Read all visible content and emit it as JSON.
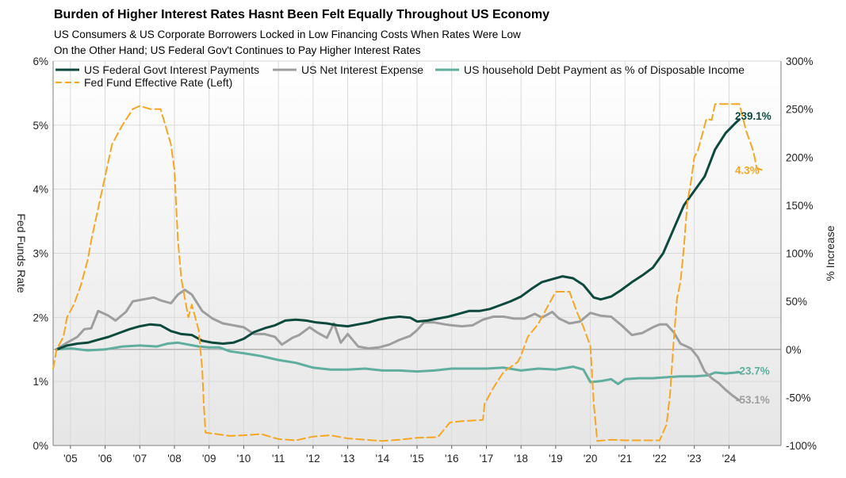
{
  "chart_data": {
    "type": "line",
    "title": "Burden of Higher Interest Rates Hasnt Been Felt Equally Throughout US Economy",
    "subtitle_lines": [
      "US Consumers & US Corporate Borrowers Locked in Low Financing Costs When Rates Were Low",
      "On the Other Hand; US Federal Gov't Continues to Pay Higher Interest Rates"
    ],
    "left_axis": {
      "label": "Fed Funds Rate",
      "min": 0,
      "max": 6,
      "ticks": [
        0,
        1,
        2,
        3,
        4,
        5,
        6
      ],
      "tick_labels": [
        "0%",
        "1%",
        "2%",
        "3%",
        "4%",
        "5%",
        "6%"
      ]
    },
    "right_axis": {
      "label": "% Increase",
      "min": -100,
      "max": 300,
      "ticks": [
        -100,
        -50,
        0,
        50,
        100,
        150,
        200,
        250,
        300
      ],
      "tick_labels": [
        "-100%",
        "-50%",
        "0%",
        "50%",
        "100%",
        "150%",
        "200%",
        "250%",
        "300%"
      ]
    },
    "x_axis": {
      "min": 2004.5,
      "max": 2025.5,
      "ticks": [
        2005,
        2006,
        2007,
        2008,
        2009,
        2010,
        2011,
        2012,
        2013,
        2014,
        2015,
        2016,
        2017,
        2018,
        2019,
        2020,
        2021,
        2022,
        2023,
        2024
      ],
      "tick_labels": [
        "'05",
        "'06",
        "'07",
        "'08",
        "'09",
        "'10",
        "'11",
        "'12",
        "'13",
        "'14",
        "'15",
        "'16",
        "'17",
        "'18",
        "'19",
        "'20",
        "'21",
        "'22",
        "'23",
        "'24"
      ]
    },
    "series": [
      {
        "name": "US Federal Govt Interest Payments",
        "axis": "right",
        "color": "#0d4a3d",
        "style": "solid",
        "end_label": "239.1%",
        "points": [
          [
            2004.6,
            0
          ],
          [
            2004.9,
            4
          ],
          [
            2005.2,
            6
          ],
          [
            2005.5,
            7
          ],
          [
            2005.8,
            10
          ],
          [
            2006.1,
            13
          ],
          [
            2006.4,
            17
          ],
          [
            2006.7,
            21
          ],
          [
            2007,
            24
          ],
          [
            2007.3,
            26
          ],
          [
            2007.6,
            25
          ],
          [
            2007.9,
            19
          ],
          [
            2008.2,
            16
          ],
          [
            2008.5,
            15
          ],
          [
            2008.8,
            9
          ],
          [
            2009.1,
            7
          ],
          [
            2009.4,
            6
          ],
          [
            2009.7,
            7
          ],
          [
            2010,
            11
          ],
          [
            2010.3,
            18
          ],
          [
            2010.6,
            22
          ],
          [
            2010.9,
            25
          ],
          [
            2011.2,
            30
          ],
          [
            2011.5,
            31
          ],
          [
            2011.8,
            30
          ],
          [
            2012.1,
            28
          ],
          [
            2012.4,
            27
          ],
          [
            2012.7,
            25
          ],
          [
            2013,
            24
          ],
          [
            2013.3,
            26
          ],
          [
            2013.6,
            28
          ],
          [
            2013.9,
            31
          ],
          [
            2014.2,
            33
          ],
          [
            2014.5,
            34
          ],
          [
            2014.8,
            33
          ],
          [
            2015,
            29
          ],
          [
            2015.3,
            30
          ],
          [
            2015.6,
            32
          ],
          [
            2015.9,
            34
          ],
          [
            2016.2,
            37
          ],
          [
            2016.5,
            40
          ],
          [
            2016.8,
            40
          ],
          [
            2017.1,
            42
          ],
          [
            2017.4,
            46
          ],
          [
            2017.7,
            50
          ],
          [
            2018,
            55
          ],
          [
            2018.3,
            63
          ],
          [
            2018.6,
            70
          ],
          [
            2018.9,
            73
          ],
          [
            2019.2,
            76
          ],
          [
            2019.5,
            74
          ],
          [
            2019.8,
            67
          ],
          [
            2020.1,
            54
          ],
          [
            2020.3,
            52
          ],
          [
            2020.6,
            55
          ],
          [
            2020.9,
            62
          ],
          [
            2021.2,
            70
          ],
          [
            2021.5,
            77
          ],
          [
            2021.8,
            85
          ],
          [
            2022.1,
            100
          ],
          [
            2022.4,
            125
          ],
          [
            2022.7,
            150
          ],
          [
            2023,
            165
          ],
          [
            2023.3,
            180
          ],
          [
            2023.6,
            208
          ],
          [
            2023.9,
            225
          ],
          [
            2024.2,
            236
          ],
          [
            2024.3,
            239.1
          ]
        ]
      },
      {
        "name": "US Net Interest Expense",
        "axis": "right",
        "color": "#9e9e9e",
        "style": "solid",
        "end_label": "-53.1%",
        "points": [
          [
            2004.6,
            0
          ],
          [
            2004.9,
            7
          ],
          [
            2005.2,
            13
          ],
          [
            2005.4,
            21
          ],
          [
            2005.6,
            22
          ],
          [
            2005.8,
            40
          ],
          [
            2006.1,
            35
          ],
          [
            2006.3,
            30
          ],
          [
            2006.6,
            39
          ],
          [
            2006.8,
            50
          ],
          [
            2007.1,
            52
          ],
          [
            2007.4,
            54
          ],
          [
            2007.6,
            51
          ],
          [
            2007.9,
            48
          ],
          [
            2008.1,
            57
          ],
          [
            2008.3,
            62
          ],
          [
            2008.5,
            57
          ],
          [
            2008.8,
            40
          ],
          [
            2009.1,
            32
          ],
          [
            2009.4,
            27
          ],
          [
            2009.7,
            25
          ],
          [
            2010,
            23
          ],
          [
            2010.3,
            16
          ],
          [
            2010.6,
            16
          ],
          [
            2010.9,
            13
          ],
          [
            2011.1,
            5
          ],
          [
            2011.4,
            12
          ],
          [
            2011.6,
            15
          ],
          [
            2011.9,
            23
          ],
          [
            2012.1,
            18
          ],
          [
            2012.4,
            12
          ],
          [
            2012.6,
            27
          ],
          [
            2012.8,
            7
          ],
          [
            2013.0,
            16
          ],
          [
            2013.3,
            3
          ],
          [
            2013.6,
            1
          ],
          [
            2013.9,
            2
          ],
          [
            2014.2,
            5
          ],
          [
            2014.5,
            10
          ],
          [
            2014.8,
            14
          ],
          [
            2015.0,
            20
          ],
          [
            2015.2,
            28
          ],
          [
            2015.5,
            28
          ],
          [
            2015.8,
            26
          ],
          [
            2016.0,
            25
          ],
          [
            2016.3,
            24
          ],
          [
            2016.6,
            25
          ],
          [
            2016.9,
            31
          ],
          [
            2017.2,
            34
          ],
          [
            2017.5,
            34
          ],
          [
            2017.8,
            32
          ],
          [
            2018.1,
            32
          ],
          [
            2018.4,
            37
          ],
          [
            2018.6,
            33
          ],
          [
            2018.9,
            39
          ],
          [
            2019.1,
            32
          ],
          [
            2019.4,
            27
          ],
          [
            2019.7,
            29
          ],
          [
            2020.0,
            38
          ],
          [
            2020.3,
            35
          ],
          [
            2020.6,
            34
          ],
          [
            2020.9,
            25
          ],
          [
            2021.2,
            15
          ],
          [
            2021.5,
            17
          ],
          [
            2021.8,
            23
          ],
          [
            2022.0,
            26
          ],
          [
            2022.2,
            26
          ],
          [
            2022.4,
            18
          ],
          [
            2022.6,
            6
          ],
          [
            2022.9,
            1
          ],
          [
            2023.1,
            -8
          ],
          [
            2023.3,
            -23
          ],
          [
            2023.5,
            -30
          ],
          [
            2023.7,
            -35
          ],
          [
            2023.9,
            -42
          ],
          [
            2024.1,
            -48
          ],
          [
            2024.3,
            -53.1
          ]
        ]
      },
      {
        "name": "US household Debt Payment as % of Disposable Income",
        "axis": "right",
        "color": "#5fae9e",
        "style": "solid",
        "end_label": "-23.7%",
        "points": [
          [
            2004.6,
            0
          ],
          [
            2005,
            1
          ],
          [
            2005.5,
            -1
          ],
          [
            2006,
            0
          ],
          [
            2006.5,
            3
          ],
          [
            2007,
            4
          ],
          [
            2007.5,
            3
          ],
          [
            2007.8,
            6
          ],
          [
            2008.1,
            7
          ],
          [
            2008.4,
            5
          ],
          [
            2008.7,
            3
          ],
          [
            2009,
            2
          ],
          [
            2009.3,
            2
          ],
          [
            2009.6,
            -2
          ],
          [
            2010,
            -4
          ],
          [
            2010.5,
            -7
          ],
          [
            2011,
            -11
          ],
          [
            2011.5,
            -14
          ],
          [
            2012,
            -19
          ],
          [
            2012.5,
            -21
          ],
          [
            2013,
            -21
          ],
          [
            2013.5,
            -20
          ],
          [
            2014,
            -22
          ],
          [
            2014.5,
            -22
          ],
          [
            2015,
            -23
          ],
          [
            2015.5,
            -22
          ],
          [
            2016,
            -20
          ],
          [
            2016.5,
            -20
          ],
          [
            2017,
            -20
          ],
          [
            2017.5,
            -19
          ],
          [
            2018,
            -22
          ],
          [
            2018.5,
            -20
          ],
          [
            2019,
            -21
          ],
          [
            2019.5,
            -18
          ],
          [
            2019.8,
            -21
          ],
          [
            2020,
            -34
          ],
          [
            2020.3,
            -33
          ],
          [
            2020.6,
            -31
          ],
          [
            2020.8,
            -36
          ],
          [
            2021,
            -31
          ],
          [
            2021.4,
            -30
          ],
          [
            2021.8,
            -30
          ],
          [
            2022.2,
            -29
          ],
          [
            2022.6,
            -28
          ],
          [
            2023,
            -28
          ],
          [
            2023.4,
            -27
          ],
          [
            2023.6,
            -24
          ],
          [
            2023.9,
            -25
          ],
          [
            2024.3,
            -23.7
          ]
        ]
      },
      {
        "name": "Fed Fund Effective Rate (Left)",
        "axis": "left",
        "color": "#f6a623",
        "style": "dashed",
        "end_label": "4.3%",
        "points": [
          [
            2004.5,
            1.2
          ],
          [
            2004.6,
            1.5
          ],
          [
            2004.8,
            1.7
          ],
          [
            2004.9,
            2.0
          ],
          [
            2005.1,
            2.2
          ],
          [
            2005.3,
            2.5
          ],
          [
            2005.5,
            2.9
          ],
          [
            2005.6,
            3.2
          ],
          [
            2005.8,
            3.7
          ],
          [
            2006.0,
            4.2
          ],
          [
            2006.2,
            4.7
          ],
          [
            2006.5,
            5.0
          ],
          [
            2006.8,
            5.25
          ],
          [
            2007.0,
            5.3
          ],
          [
            2007.3,
            5.25
          ],
          [
            2007.6,
            5.25
          ],
          [
            2007.9,
            4.7
          ],
          [
            2008.0,
            4.3
          ],
          [
            2008.1,
            3.2
          ],
          [
            2008.2,
            2.6
          ],
          [
            2008.4,
            2.0
          ],
          [
            2008.5,
            2.2
          ],
          [
            2008.6,
            2.0
          ],
          [
            2008.7,
            1.8
          ],
          [
            2008.8,
            1.2
          ],
          [
            2008.85,
            0.6
          ],
          [
            2008.9,
            0.2
          ],
          [
            2009.2,
            0.18
          ],
          [
            2009.6,
            0.15
          ],
          [
            2010,
            0.16
          ],
          [
            2010.5,
            0.18
          ],
          [
            2011,
            0.1
          ],
          [
            2011.5,
            0.08
          ],
          [
            2012,
            0.14
          ],
          [
            2012.5,
            0.16
          ],
          [
            2013,
            0.11
          ],
          [
            2013.5,
            0.09
          ],
          [
            2014,
            0.07
          ],
          [
            2014.5,
            0.09
          ],
          [
            2015,
            0.12
          ],
          [
            2015.6,
            0.13
          ],
          [
            2015.95,
            0.36
          ],
          [
            2016.3,
            0.38
          ],
          [
            2016.9,
            0.4
          ],
          [
            2016.95,
            0.65
          ],
          [
            2017.2,
            0.9
          ],
          [
            2017.5,
            1.15
          ],
          [
            2017.9,
            1.3
          ],
          [
            2018.0,
            1.4
          ],
          [
            2018.2,
            1.7
          ],
          [
            2018.5,
            1.9
          ],
          [
            2018.8,
            2.2
          ],
          [
            2019.0,
            2.4
          ],
          [
            2019.4,
            2.4
          ],
          [
            2019.6,
            2.1
          ],
          [
            2019.8,
            1.85
          ],
          [
            2020.0,
            1.55
          ],
          [
            2020.1,
            0.65
          ],
          [
            2020.2,
            0.07
          ],
          [
            2020.6,
            0.09
          ],
          [
            2021.0,
            0.08
          ],
          [
            2021.5,
            0.08
          ],
          [
            2022.0,
            0.08
          ],
          [
            2022.2,
            0.33
          ],
          [
            2022.3,
            0.8
          ],
          [
            2022.4,
            1.6
          ],
          [
            2022.5,
            2.3
          ],
          [
            2022.6,
            2.55
          ],
          [
            2022.7,
            3.1
          ],
          [
            2022.8,
            3.8
          ],
          [
            2022.9,
            4.1
          ],
          [
            2023.0,
            4.5
          ],
          [
            2023.1,
            4.6
          ],
          [
            2023.2,
            4.8
          ],
          [
            2023.35,
            5.1
          ],
          [
            2023.5,
            5.08
          ],
          [
            2023.6,
            5.33
          ],
          [
            2024.0,
            5.33
          ],
          [
            2024.3,
            5.33
          ],
          [
            2024.5,
            4.9
          ],
          [
            2024.7,
            4.6
          ],
          [
            2024.8,
            4.33
          ],
          [
            2024.95,
            4.3
          ]
        ]
      }
    ],
    "legend_position": "top-left",
    "grid": true
  }
}
